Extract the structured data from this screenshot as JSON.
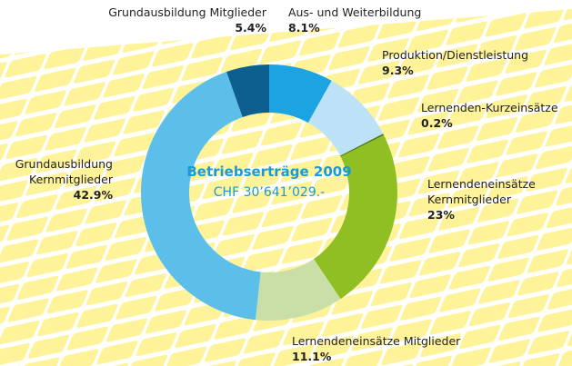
{
  "chart_data": {
    "type": "pie",
    "title": "Betriebserträge 2009",
    "subtitle": "CHF 30’641’029.-",
    "categories": [
      "Aus- und Weiterbildung",
      "Produktion/Dienstleistung",
      "Lernenden-Kurzeinsätze",
      "Lernendeneinsätze Kernmitglieder",
      "Lernendeneinsätze Mitglieder",
      "Grundausbildung Kernmitglieder",
      "Grundausbildung Mitglieder"
    ],
    "values": [
      8.1,
      9.3,
      0.2,
      23,
      11.1,
      42.9,
      5.4
    ],
    "value_labels": [
      "8.1%",
      "9.3%",
      "0.2%",
      "23%",
      "11.1%",
      "42.9%",
      "5.4%"
    ],
    "colors": [
      "#1ca3e2",
      "#bde2f7",
      "#4d7317",
      "#8fbf23",
      "#cadfa8",
      "#5cbfea",
      "#0c5f8e"
    ]
  }
}
